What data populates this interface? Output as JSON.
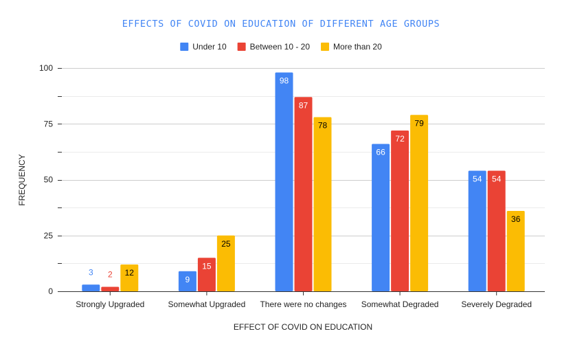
{
  "chart_data": {
    "type": "bar",
    "title": "EFFECTS OF COVID ON EDUCATION OF DIFFERENT AGE GROUPS",
    "xlabel": "EFFECT OF COVID ON EDUCATION",
    "ylabel": "FREQUENCY",
    "ylim": [
      0,
      100
    ],
    "yticks": [
      "0",
      "25",
      "50",
      "75",
      "100"
    ],
    "grid": true,
    "legend_position": "top",
    "categories": [
      "Strongly Upgraded",
      "Somewhat Upgraded",
      "There were no changes",
      "Somewhat Degraded",
      "Severely Degraded"
    ],
    "series": [
      {
        "name": "Under 10",
        "color": "#4285f4",
        "values": [
          3,
          9,
          98,
          66,
          54
        ]
      },
      {
        "name": "Between 10 - 20",
        "color": "#ea4335",
        "values": [
          2,
          15,
          87,
          72,
          54
        ]
      },
      {
        "name": "More than 20",
        "color": "#fbbc04",
        "values": [
          12,
          25,
          78,
          79,
          36
        ]
      }
    ],
    "title_color": "#4285f4"
  }
}
